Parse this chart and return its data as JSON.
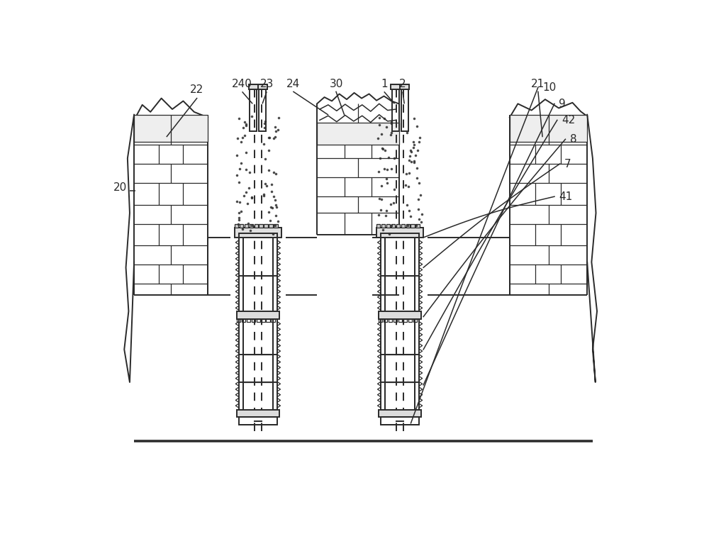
{
  "bg_color": "#ffffff",
  "line_color": "#2a2a2a",
  "lw_main": 1.4,
  "lw_thin": 0.9,
  "label_fs": 11,
  "fig_w": 10.0,
  "fig_h": 7.7,
  "dpi": 100,
  "coord": {
    "xlim": [
      0,
      1000
    ],
    "ylim": [
      0,
      770
    ]
  }
}
